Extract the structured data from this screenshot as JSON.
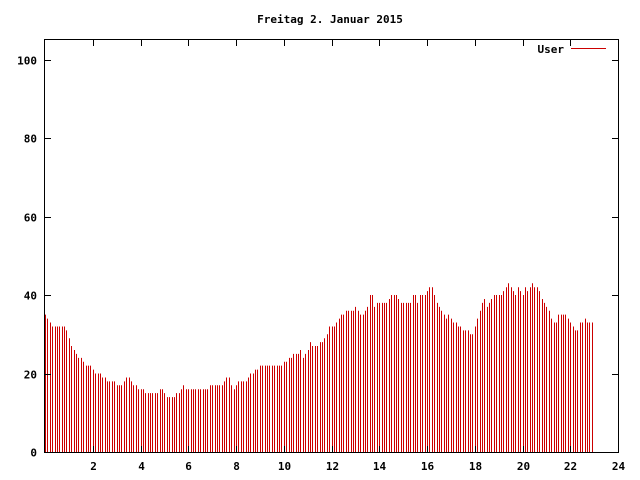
{
  "chart_data": {
    "type": "bar",
    "title": "Freitag 2. Januar 2015",
    "xlabel": "",
    "ylabel": "",
    "xlim": [
      0,
      24
    ],
    "ylim": [
      0,
      105
    ],
    "x_ticks": [
      2,
      4,
      6,
      8,
      10,
      12,
      14,
      16,
      18,
      20,
      22,
      24
    ],
    "y_ticks": [
      0,
      20,
      40,
      60,
      80,
      100
    ],
    "grid": false,
    "legend_position": "top-right",
    "series": [
      {
        "name": "User",
        "color": "#cc0000",
        "x_start": 0,
        "x_step": 0.1,
        "values": [
          35,
          34,
          33,
          32,
          32,
          32,
          32,
          32,
          32,
          31,
          29,
          27,
          26,
          25,
          24,
          24,
          23,
          22,
          22,
          22,
          21,
          20,
          20,
          20,
          19,
          19,
          18,
          18,
          18,
          18,
          17,
          17,
          17,
          18,
          19,
          19,
          18,
          17,
          17,
          16,
          16,
          16,
          15,
          15,
          15,
          15,
          15,
          15,
          16,
          16,
          15,
          14,
          14,
          14,
          14,
          15,
          15,
          16,
          17,
          16,
          16,
          16,
          16,
          16,
          16,
          16,
          16,
          16,
          16,
          17,
          17,
          17,
          17,
          17,
          17,
          18,
          19,
          19,
          17,
          16,
          17,
          18,
          18,
          18,
          18,
          19,
          20,
          20,
          21,
          21,
          22,
          22,
          22,
          22,
          22,
          22,
          22,
          22,
          22,
          22,
          23,
          23,
          24,
          24,
          25,
          25,
          25,
          26,
          24,
          25,
          26,
          28,
          27,
          27,
          27,
          28,
          28,
          29,
          30,
          32,
          32,
          32,
          33,
          34,
          35,
          35,
          36,
          36,
          36,
          36,
          37,
          36,
          35,
          35,
          36,
          37,
          40,
          40,
          37,
          38,
          38,
          38,
          38,
          38,
          39,
          40,
          40,
          40,
          39,
          38,
          38,
          38,
          38,
          38,
          40,
          40,
          38,
          40,
          40,
          40,
          41,
          42,
          42,
          40,
          38,
          37,
          36,
          35,
          34,
          35,
          34,
          33,
          33,
          32,
          32,
          31,
          31,
          31,
          30,
          30,
          32,
          34,
          36,
          38,
          39,
          37,
          38,
          39,
          40,
          40,
          40,
          40,
          41,
          42,
          43,
          42,
          41,
          40,
          42,
          41,
          40,
          42,
          41,
          42,
          43,
          42,
          42,
          41,
          39,
          38,
          37,
          36,
          34,
          33,
          33,
          35,
          35,
          35,
          35,
          34,
          33,
          32,
          31,
          31,
          33,
          33,
          34,
          33,
          33,
          33
        ]
      }
    ]
  },
  "colors": {
    "series": "#cc0000",
    "axis": "#000000",
    "background": "#ffffff"
  }
}
